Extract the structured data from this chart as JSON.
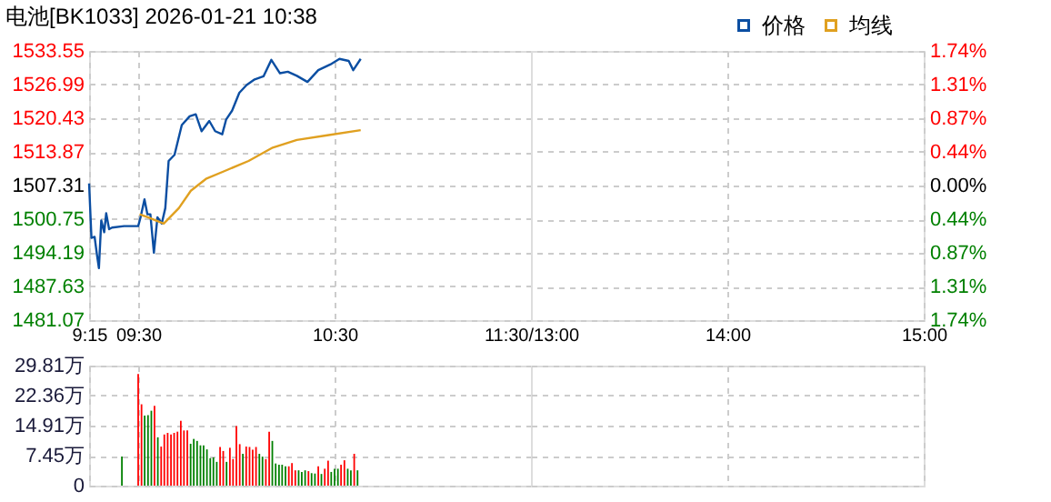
{
  "chart_data": [
    {
      "type": "line",
      "title": "电池[BK1033] 2026-01-21 10:38",
      "xlim": [
        9.25,
        11.5
      ],
      "xticks": [
        {
          "value": 9.25,
          "label": "9:15"
        },
        {
          "value": 9.5,
          "label": "09:30"
        },
        {
          "value": 10.5,
          "label": "10:30"
        },
        {
          "value": 11.5,
          "label": "11:30/13:00"
        }
      ],
      "ylim": [
        1481.07,
        1533.55
      ],
      "yticks": [
        1481.07,
        1487.63,
        1494.19,
        1500.75,
        1507.31,
        1513.87,
        1520.43,
        1526.99,
        1533.55
      ],
      "grid": true,
      "legend": "top right",
      "line_style": "solid",
      "series": [
        {
          "name": "价格",
          "color": "#0b4ea2",
          "x": [
            9.25,
            9.262,
            9.278,
            9.29,
            9.3,
            9.312,
            9.327,
            9.337,
            9.352,
            9.367,
            9.428,
            9.5,
            9.512,
            9.532,
            9.547,
            9.562,
            9.58,
            9.598,
            9.62,
            9.638,
            9.655,
            9.685,
            9.722,
            9.762,
            9.793,
            9.823,
            9.862,
            9.892,
            9.928,
            9.948,
            9.978,
            10.015,
            10.052,
            10.093,
            10.138,
            10.178,
            10.222,
            10.262,
            10.308,
            10.362,
            10.417,
            10.478,
            10.525,
            10.572,
            10.595,
            10.633
          ],
          "values": [
            1507.7,
            1497.1,
            1497.3,
            1493.8,
            1491.2,
            1500.5,
            1498.2,
            1501.9,
            1498.8,
            1499.1,
            1499.4,
            1499.4,
            1501.1,
            1504.6,
            1501.7,
            1501.7,
            1494.2,
            1501.1,
            1499.9,
            1502.9,
            1512.1,
            1513.3,
            1519.1,
            1520.8,
            1521.2,
            1517.9,
            1519.9,
            1517.9,
            1517.3,
            1520.2,
            1521.9,
            1525.4,
            1526.9,
            1528.0,
            1528.6,
            1531.8,
            1529.2,
            1529.5,
            1528.7,
            1527.5,
            1529.8,
            1530.9,
            1532.0,
            1531.6,
            1529.8,
            1532.0
          ]
        },
        {
          "name": "均线",
          "color": "#e0a020",
          "x": [
            9.507,
            9.552,
            9.63,
            9.707,
            9.768,
            9.845,
            9.938,
            10.062,
            10.185,
            10.308,
            10.463,
            10.633
          ],
          "values": [
            1501.7,
            1501.1,
            1499.9,
            1502.9,
            1506.3,
            1508.6,
            1510.1,
            1512.1,
            1514.7,
            1516.2,
            1517.1,
            1518.1
          ]
        }
      ]
    },
    {
      "type": "line",
      "xlim": [
        13,
        15
      ],
      "grid": true,
      "xticks": [
        {
          "value": 14,
          "label": "14:00"
        },
        {
          "value": 15,
          "label": "15:00"
        }
      ],
      "y2lim": [
        -1.74,
        1.74
      ],
      "y2ticks": [
        {
          "value": -1.74,
          "label": "1.74%"
        },
        {
          "value": -1.31,
          "label": "1.31%"
        },
        {
          "value": -0.87,
          "label": "0.87%"
        },
        {
          "value": -0.44,
          "label": "0.44%"
        },
        {
          "value": 0,
          "label": "0.00%"
        },
        {
          "value": 0.44,
          "label": "0.44%"
        },
        {
          "value": 0.87,
          "label": "0.87%"
        },
        {
          "value": 1.31,
          "label": "1.31%"
        },
        {
          "value": 1.74,
          "label": "1.74%"
        }
      ]
    },
    {
      "type": "bar",
      "xlim": [
        9.25,
        11.5
      ],
      "tick_labels": "y",
      "grid": true,
      "xticks": [
        9.25,
        9.5,
        10.5,
        11.5
      ],
      "ylim": [
        0,
        29.81
      ],
      "yticks": [
        0,
        {
          "value": 7.45,
          "label": "7.45万"
        },
        {
          "value": 14.91,
          "label": "14.91万"
        },
        {
          "value": 22.36,
          "label": "22.36万"
        },
        {
          "value": 29.81,
          "label": "29.81万"
        }
      ],
      "x": [
        9.417,
        9.5,
        9.517,
        9.533,
        9.55,
        9.567,
        9.583,
        9.6,
        9.617,
        9.633,
        9.65,
        9.667,
        9.683,
        9.7,
        9.717,
        9.733,
        9.75,
        9.767,
        9.783,
        9.8,
        9.817,
        9.833,
        9.85,
        9.867,
        9.883,
        9.9,
        9.917,
        9.933,
        9.95,
        9.967,
        9.983,
        10,
        10.017,
        10.033,
        10.05,
        10.067,
        10.083,
        10.1,
        10.117,
        10.133,
        10.15,
        10.167,
        10.183,
        10.2,
        10.217,
        10.233,
        10.25,
        10.267,
        10.283,
        10.3,
        10.317,
        10.333,
        10.35,
        10.367,
        10.383,
        10.4,
        10.417,
        10.433,
        10.45,
        10.467,
        10.483,
        10.5,
        10.517,
        10.533,
        10.55,
        10.567,
        10.583,
        10.6,
        10.617
      ],
      "values": [
        7.2,
        27.7,
        20.2,
        17.4,
        17.5,
        18.6,
        19.8,
        12.0,
        9.7,
        12.7,
        13.1,
        12.7,
        13.1,
        13.4,
        16.1,
        13.7,
        13.7,
        10.4,
        11.6,
        11.1,
        10.0,
        10.0,
        9.0,
        6.8,
        7.0,
        5.9,
        9.6,
        8.6,
        5.9,
        9.4,
        6.6,
        14.8,
        10.3,
        7.9,
        9.7,
        9.6,
        8.9,
        9.6,
        7.9,
        7.2,
        6.6,
        13.4,
        11.1,
        5.5,
        5.2,
        5.2,
        4.8,
        4.8,
        5.6,
        3.8,
        3.8,
        3.4,
        3.8,
        3.6,
        3.1,
        3.0,
        4.8,
        2.9,
        4.2,
        6.2,
        3.4,
        4.2,
        4.2,
        5.2,
        6.3,
        4.2,
        3.8,
        7.9,
        3.8
      ],
      "colors": [
        "#008000",
        "#ff0000",
        "#ff0000",
        "#008000",
        "#008000",
        "#008000",
        "#ff0000",
        "#008000",
        "#ff0000",
        "#ff0000",
        "#ff0000",
        "#ff0000",
        "#ff0000",
        "#ff0000",
        "#ff0000",
        "#ff0000",
        "#ff0000",
        "#008000",
        "#008000",
        "#008000",
        "#008000",
        "#008000",
        "#008000",
        "#008000",
        "#008000",
        "#008000",
        "#ff0000",
        "#ff0000",
        "#008000",
        "#ff0000",
        "#ff0000",
        "#ff0000",
        "#ff0000",
        "#008000",
        "#ff0000",
        "#ff0000",
        "#ff0000",
        "#ff0000",
        "#008000",
        "#008000",
        "#ff0000",
        "#ff0000",
        "#008000",
        "#008000",
        "#008000",
        "#008000",
        "#008000",
        "#ff0000",
        "#ff0000",
        "#ff0000",
        "#008000",
        "#008000",
        "#008000",
        "#ff0000",
        "#008000",
        "#008000",
        "#ff0000",
        "#008000",
        "#ff0000",
        "#ff0000",
        "#008000",
        "#008000",
        "#008000",
        "#ff0000",
        "#ff0000",
        "#008000",
        "#008000",
        "#ff0000",
        "#008000"
      ]
    },
    {
      "type": "bar",
      "xlim": [
        13,
        15
      ],
      "tick_labels": false,
      "grid": true,
      "xticks": [
        14,
        15
      ],
      "ylim": [
        0,
        29.81
      ],
      "yticks": [
        0,
        7.45,
        14.91,
        22.36,
        29.81
      ]
    }
  ]
}
